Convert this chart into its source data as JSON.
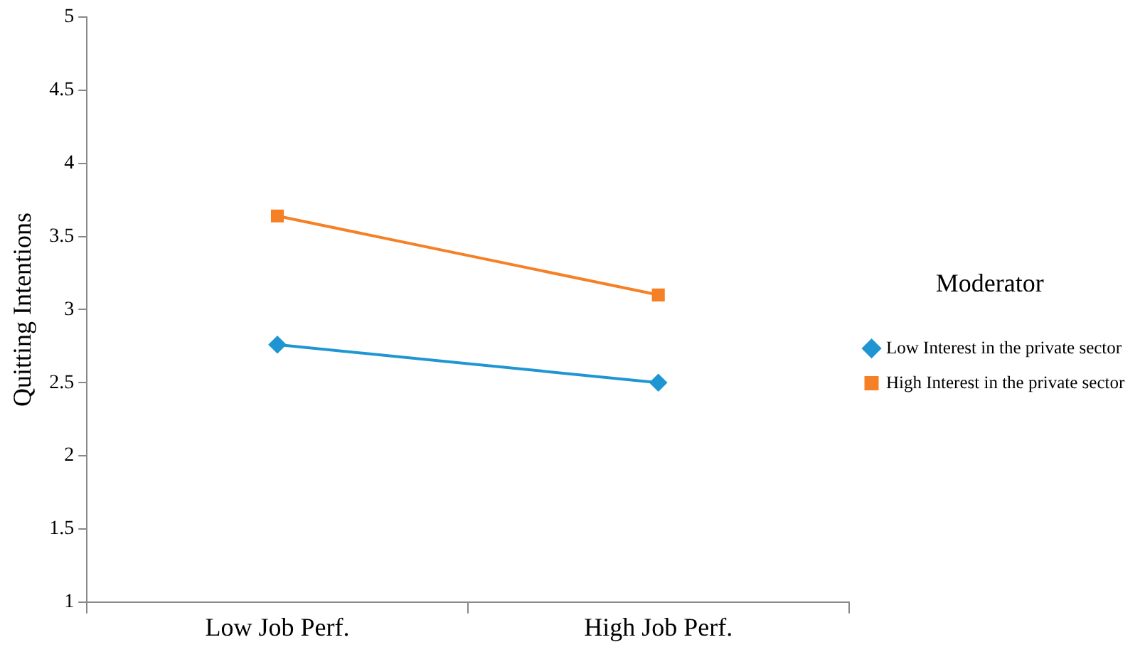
{
  "chart_data": {
    "type": "line",
    "ylabel": "Quitting Intentions",
    "legend_title": "Moderator",
    "categories": [
      "Low Job Perf.",
      "High Job Perf."
    ],
    "series": [
      {
        "name": "Low Interest in the private sector",
        "color": "#1f96d2",
        "marker": "diamond",
        "values": [
          2.76,
          2.5
        ]
      },
      {
        "name": "High Interest in the private sector",
        "color": "#f58025",
        "marker": "square",
        "values": [
          3.64,
          3.1
        ]
      }
    ],
    "ylim": [
      1,
      5
    ],
    "yticks": [
      1,
      1.5,
      2,
      2.5,
      3,
      3.5,
      4,
      4.5,
      5
    ],
    "grid": false,
    "legend": "right"
  }
}
